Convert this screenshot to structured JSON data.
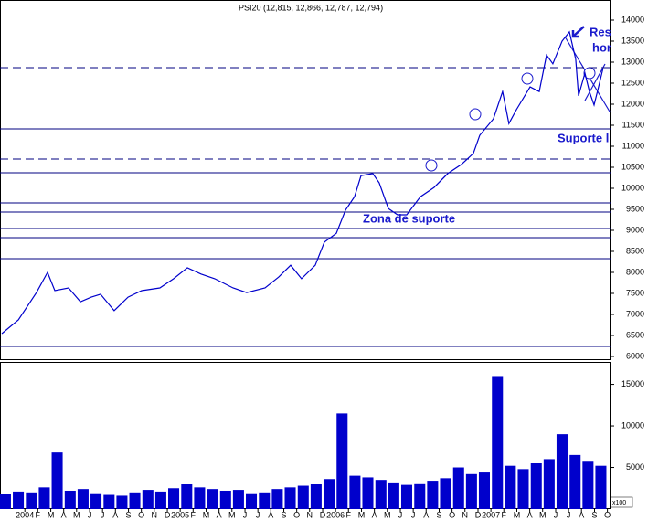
{
  "chart_data": [
    {
      "type": "line",
      "title": "PSI20 (12,815, 12,866, 12,787, 12,794)",
      "color": "#0000cc",
      "x": [
        2003.852,
        2003.958,
        2004.075,
        2004.146,
        2004.193,
        2004.281,
        2004.358,
        2004.428,
        2004.487,
        2004.575,
        2004.664,
        2004.752,
        2004.869,
        2004.958,
        2005.046,
        2005.134,
        2005.222,
        2005.34,
        2005.428,
        2005.546,
        2005.634,
        2005.711,
        2005.781,
        2005.869,
        2005.928,
        2006.005,
        2006.064,
        2006.122,
        2006.164,
        2006.24,
        2006.281,
        2006.34,
        2006.399,
        2006.458,
        2006.546,
        2006.634,
        2006.722,
        2006.811,
        2006.887,
        2006.928,
        2007.016,
        2007.075,
        2007.116,
        2007.164,
        2007.252,
        2007.311,
        2007.358,
        2007.399,
        2007.458,
        2007.505,
        2007.546,
        2007.564,
        2007.605,
        2007.634,
        2007.664,
        2007.693,
        2007.722
      ],
      "values": [
        6544,
        6870,
        7520,
        8000,
        7565,
        7630,
        7300,
        7410,
        7480,
        7090,
        7410,
        7565,
        7630,
        7850,
        8110,
        7960,
        7850,
        7630,
        7520,
        7630,
        7890,
        8170,
        7850,
        8170,
        8720,
        8930,
        9480,
        9800,
        10300,
        10350,
        10130,
        9520,
        9370,
        9370,
        9800,
        10020,
        10350,
        10570,
        10830,
        11260,
        11650,
        12300,
        11540,
        11870,
        12410,
        12300,
        13170,
        12960,
        13500,
        13720,
        13070,
        12200,
        12740,
        12300,
        11980,
        12410,
        12850
      ],
      "xlim": [
        2003.84,
        2007.77
      ],
      "ylim": [
        5935,
        14478
      ],
      "yticks": [
        6000,
        6500,
        7000,
        7500,
        8000,
        8500,
        9000,
        9500,
        10000,
        10500,
        11000,
        11500,
        12000,
        12500,
        13000,
        13500,
        14000
      ],
      "reference_lines": [
        {
          "value": 12870,
          "style": "dashed"
        },
        {
          "value": 11413,
          "style": "solid"
        },
        {
          "value": 10696,
          "style": "dashed"
        },
        {
          "value": 10370,
          "style": "solid"
        },
        {
          "value": 9652,
          "style": "solid"
        },
        {
          "value": 9435,
          "style": "solid"
        },
        {
          "value": 9043,
          "style": "solid"
        },
        {
          "value": 8826,
          "style": "solid"
        },
        {
          "value": 8326,
          "style": "solid"
        },
        {
          "value": 6239,
          "style": "solid"
        }
      ],
      "annotations": [
        "Zona de suporte",
        "Suporte l",
        "Res",
        "hor"
      ]
    },
    {
      "type": "bar",
      "color": "#0000cc",
      "y_unit": "x100",
      "x": [
        2003.875,
        2003.958,
        2004.042,
        2004.125,
        2004.208,
        2004.292,
        2004.375,
        2004.458,
        2004.542,
        2004.625,
        2004.708,
        2004.792,
        2004.875,
        2004.958,
        2005.042,
        2005.125,
        2005.208,
        2005.292,
        2005.375,
        2005.458,
        2005.542,
        2005.625,
        2005.708,
        2005.792,
        2005.875,
        2005.958,
        2006.042,
        2006.125,
        2006.208,
        2006.292,
        2006.375,
        2006.458,
        2006.542,
        2006.625,
        2006.708,
        2006.792,
        2006.875,
        2006.958,
        2007.042,
        2007.125,
        2007.208,
        2007.292,
        2007.375,
        2007.458,
        2007.542,
        2007.625,
        2007.708
      ],
      "values": [
        1800,
        2100,
        2000,
        2600,
        6800,
        2200,
        2400,
        1900,
        1700,
        1600,
        2000,
        2300,
        2100,
        2500,
        3000,
        2600,
        2400,
        2200,
        2300,
        1900,
        2000,
        2400,
        2600,
        2800,
        3000,
        3600,
        11500,
        4000,
        3800,
        3500,
        3200,
        2900,
        3100,
        3400,
        3700,
        5000,
        4200,
        4500,
        16000,
        5200,
        4800,
        5500,
        6000,
        9000,
        6500,
        5800,
        5200
      ],
      "xlim": [
        2003.84,
        2007.77
      ],
      "ylim": [
        0,
        17700
      ],
      "yticks": [
        5000,
        10000,
        15000
      ],
      "xticks": [
        2004,
        {
          "value": 2004.083,
          "label": "F"
        },
        {
          "value": 2004.167,
          "label": "M"
        },
        {
          "value": 2004.25,
          "label": "A"
        },
        {
          "value": 2004.333,
          "label": "M"
        },
        {
          "value": 2004.417,
          "label": "J"
        },
        {
          "value": 2004.5,
          "label": "J"
        },
        {
          "value": 2004.583,
          "label": "A"
        },
        {
          "value": 2004.667,
          "label": "S"
        },
        {
          "value": 2004.75,
          "label": "O"
        },
        {
          "value": 2004.833,
          "label": "N"
        },
        {
          "value": 2004.917,
          "label": "D"
        },
        2005,
        {
          "value": 2005.083,
          "label": "F"
        },
        {
          "value": 2005.167,
          "label": "M"
        },
        {
          "value": 2005.25,
          "label": "A"
        },
        {
          "value": 2005.333,
          "label": "M"
        },
        {
          "value": 2005.417,
          "label": "J"
        },
        {
          "value": 2005.5,
          "label": "J"
        },
        {
          "value": 2005.583,
          "label": "A"
        },
        {
          "value": 2005.667,
          "label": "S"
        },
        {
          "value": 2005.75,
          "label": "O"
        },
        {
          "value": 2005.833,
          "label": "N"
        },
        {
          "value": 2005.917,
          "label": "D"
        },
        2006,
        {
          "value": 2006.083,
          "label": "F"
        },
        {
          "value": 2006.167,
          "label": "M"
        },
        {
          "value": 2006.25,
          "label": "A"
        },
        {
          "value": 2006.333,
          "label": "M"
        },
        {
          "value": 2006.417,
          "label": "J"
        },
        {
          "value": 2006.5,
          "label": "J"
        },
        {
          "value": 2006.583,
          "label": "A"
        },
        {
          "value": 2006.667,
          "label": "S"
        },
        {
          "value": 2006.75,
          "label": "O"
        },
        {
          "value": 2006.833,
          "label": "N"
        },
        {
          "value": 2006.917,
          "label": "D"
        },
        2007,
        {
          "value": 2007.083,
          "label": "F"
        },
        {
          "value": 2007.167,
          "label": "M"
        },
        {
          "value": 2007.25,
          "label": "A"
        },
        {
          "value": 2007.333,
          "label": "M"
        },
        {
          "value": 2007.417,
          "label": "J"
        },
        {
          "value": 2007.5,
          "label": "J"
        },
        {
          "value": 2007.583,
          "label": "A"
        },
        {
          "value": 2007.667,
          "label": "S"
        },
        {
          "value": 2007.75,
          "label": "O"
        }
      ]
    }
  ]
}
